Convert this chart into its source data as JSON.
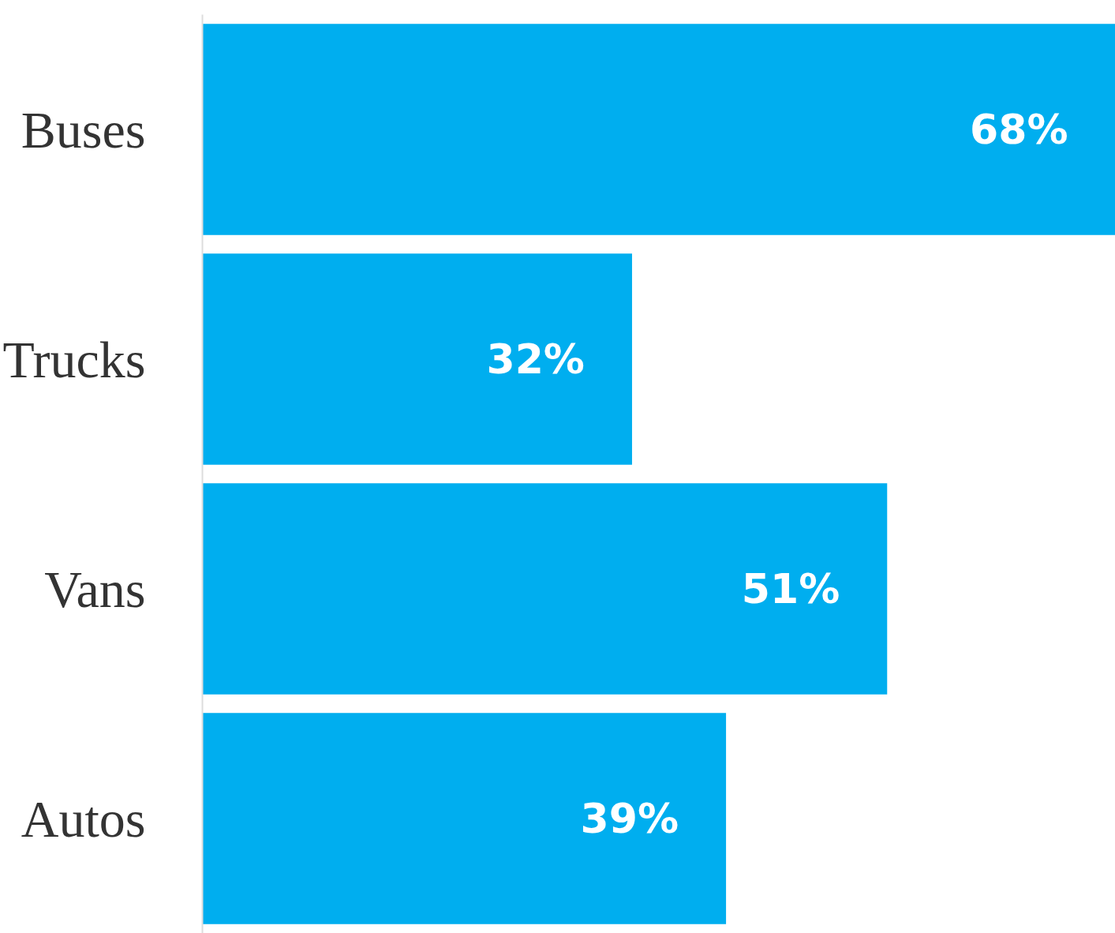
{
  "chart_data": {
    "type": "bar",
    "orientation": "horizontal",
    "categories": [
      "Buses",
      "Trucks",
      "Vans",
      "Autos"
    ],
    "values": [
      68,
      32,
      51,
      39
    ],
    "color": "#00aeef",
    "value_labels": [
      "68%",
      "32%",
      "51%",
      "39%"
    ],
    "xlim": [
      0,
      68
    ],
    "grid": false
  }
}
